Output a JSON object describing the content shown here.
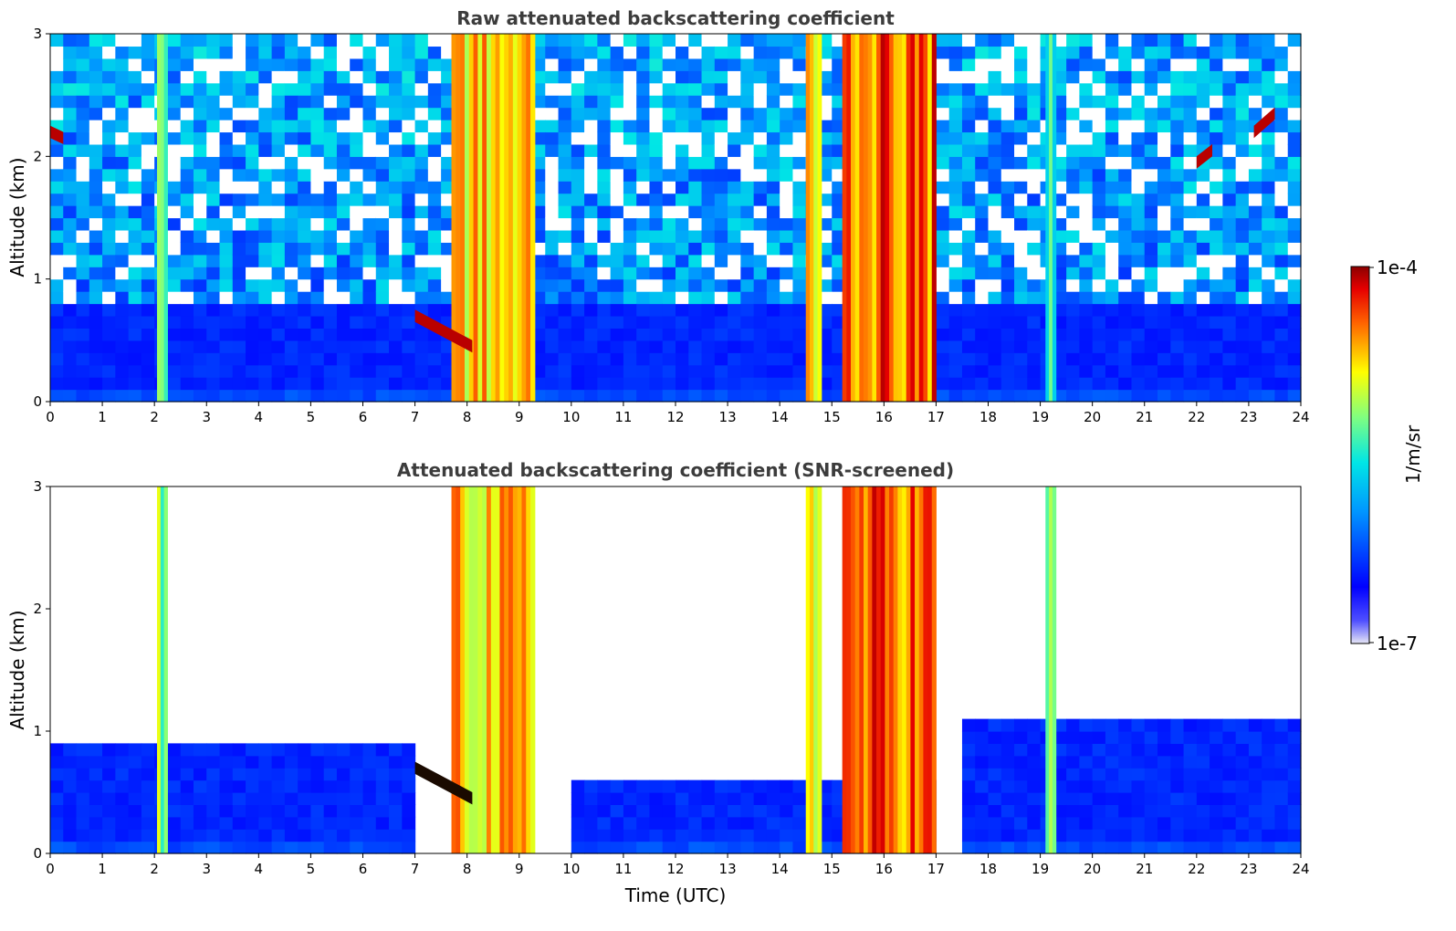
{
  "chart_data": [
    {
      "type": "heatmap",
      "title": "Raw attenuated backscattering coefficient",
      "xlabel": "",
      "ylabel": "Altitude (km)",
      "xlim": [
        0,
        24
      ],
      "ylim": [
        0,
        3
      ],
      "x_ticks": [
        "0",
        "1",
        "2",
        "3",
        "4",
        "5",
        "6",
        "7",
        "8",
        "9",
        "10",
        "11",
        "12",
        "13",
        "14",
        "15",
        "16",
        "17",
        "18",
        "19",
        "20",
        "21",
        "22",
        "23",
        "24"
      ],
      "y_ticks": [
        "0",
        "1",
        "2",
        "3"
      ],
      "screened": false,
      "features": [
        {
          "kind": "boundary_layer",
          "x": [
            0,
            24
          ],
          "top_km": 0.75
        },
        {
          "kind": "precip_column",
          "x": [
            2.05,
            2.25
          ],
          "max_km": 3.0,
          "level": 0.6
        },
        {
          "kind": "precip_column",
          "x": [
            7.7,
            9.3
          ],
          "max_km": 3.0,
          "level": 0.75
        },
        {
          "kind": "precip_column",
          "x": [
            14.5,
            14.8
          ],
          "max_km": 3.0,
          "level": 0.75
        },
        {
          "kind": "precip_column",
          "x": [
            15.2,
            17.0
          ],
          "max_km": 3.0,
          "level": 0.85
        },
        {
          "kind": "precip_column",
          "x": [
            19.1,
            19.3
          ],
          "max_km": 3.0,
          "level": 0.55
        },
        {
          "kind": "cloud_layer",
          "x": [
            7.0,
            8.1
          ],
          "altitude_km": [
            0.7,
            0.45
          ]
        },
        {
          "kind": "cloud_layer",
          "x": [
            23.1,
            23.5
          ],
          "altitude_km": [
            2.2,
            2.35
          ]
        },
        {
          "kind": "cloud_layer",
          "x": [
            22.0,
            22.3
          ],
          "altitude_km": [
            1.95,
            2.05
          ]
        },
        {
          "kind": "cloud_layer",
          "x": [
            0.0,
            0.25
          ],
          "altitude_km": [
            2.2,
            2.15
          ]
        }
      ]
    },
    {
      "type": "heatmap",
      "title": "Attenuated backscattering coefficient (SNR-screened)",
      "xlabel": "Time (UTC)",
      "ylabel": "Altitude (km)",
      "xlim": [
        0,
        24
      ],
      "ylim": [
        0,
        3
      ],
      "x_ticks": [
        "0",
        "1",
        "2",
        "3",
        "4",
        "5",
        "6",
        "7",
        "8",
        "9",
        "10",
        "11",
        "12",
        "13",
        "14",
        "15",
        "16",
        "17",
        "18",
        "19",
        "20",
        "21",
        "22",
        "23",
        "24"
      ],
      "y_ticks": [
        "0",
        "1",
        "2",
        "3"
      ],
      "screened": true,
      "features": [
        {
          "kind": "boundary_layer",
          "x": [
            0,
            7
          ],
          "top_km": 0.85
        },
        {
          "kind": "boundary_layer",
          "x": [
            10,
            17
          ],
          "top_km": 0.6
        },
        {
          "kind": "boundary_layer",
          "x": [
            17.5,
            24
          ],
          "top_km": 1.1
        },
        {
          "kind": "precip_column",
          "x": [
            2.05,
            2.25
          ],
          "max_km": 3.0,
          "level": 0.6
        },
        {
          "kind": "precip_column",
          "x": [
            7.7,
            9.3
          ],
          "max_km": 3.0,
          "level": 0.75
        },
        {
          "kind": "precip_column",
          "x": [
            14.5,
            14.8
          ],
          "max_km": 3.0,
          "level": 0.75
        },
        {
          "kind": "precip_column",
          "x": [
            15.2,
            17.0
          ],
          "max_km": 3.0,
          "level": 0.85
        },
        {
          "kind": "precip_column",
          "x": [
            19.1,
            19.3
          ],
          "max_km": 3.0,
          "level": 0.55
        },
        {
          "kind": "cloud_layer",
          "x": [
            7.0,
            8.1
          ],
          "altitude_km": [
            0.7,
            0.45
          ]
        }
      ]
    }
  ],
  "colorbar": {
    "label": "1/m/sr",
    "max_label": "1e-4",
    "min_label": "1e-7",
    "colormap": "jet"
  },
  "colors": {
    "background": "#ffffff",
    "title_text": "#3c3c3c",
    "axis": "#000000"
  }
}
